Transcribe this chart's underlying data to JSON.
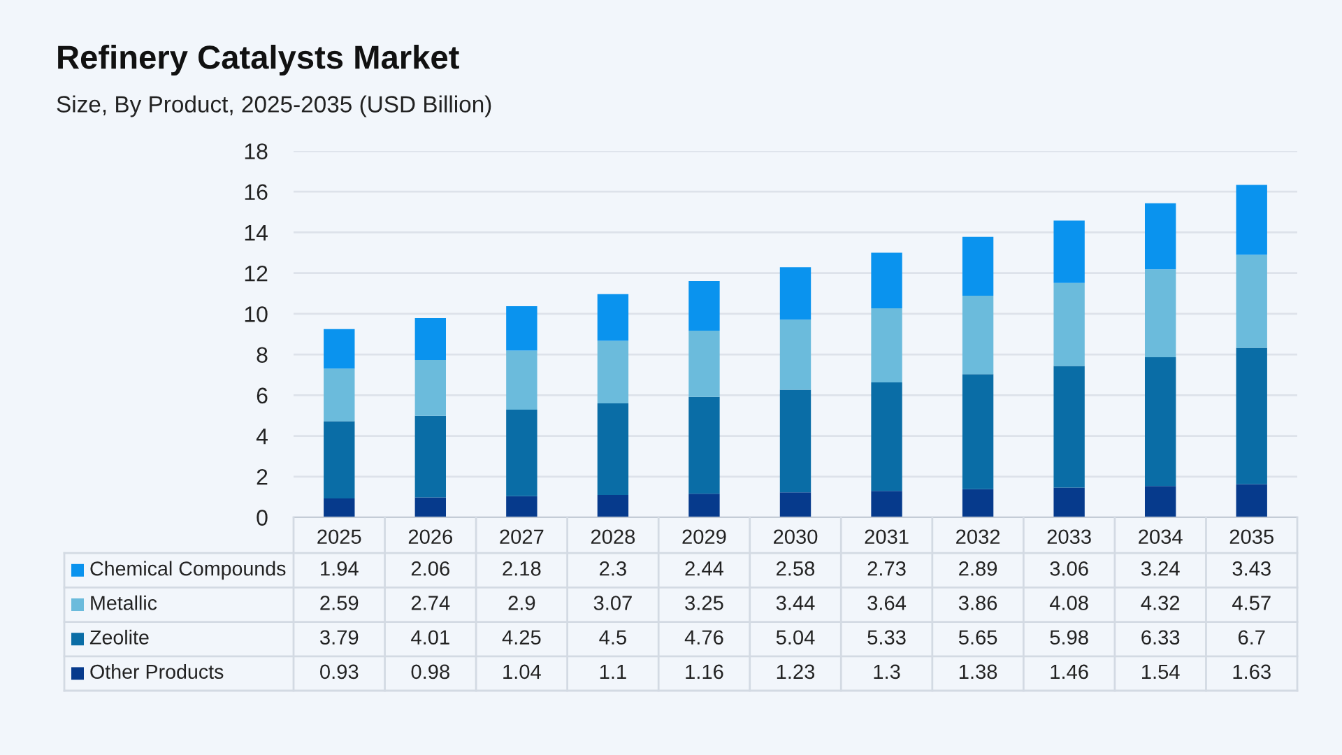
{
  "chart_data": {
    "type": "bar",
    "title": "Refinery Catalysts Market",
    "subtitle": "Size, By Product, 2025-2035 (USD Billion)",
    "categories": [
      "2025",
      "2026",
      "2027",
      "2028",
      "2029",
      "2030",
      "2031",
      "2032",
      "2033",
      "2034",
      "2035"
    ],
    "series": [
      {
        "name": "Other Products",
        "color": "#063a8c",
        "values": [
          0.93,
          0.98,
          1.04,
          1.1,
          1.16,
          1.23,
          1.3,
          1.38,
          1.46,
          1.54,
          1.63
        ]
      },
      {
        "name": "Zeolite",
        "color": "#0a6da6",
        "values": [
          3.79,
          4.01,
          4.25,
          4.5,
          4.76,
          5.04,
          5.33,
          5.65,
          5.98,
          6.33,
          6.7
        ]
      },
      {
        "name": "Metallic",
        "color": "#6bbbdc",
        "values": [
          2.59,
          2.74,
          2.9,
          3.07,
          3.25,
          3.44,
          3.64,
          3.86,
          4.08,
          4.32,
          4.57
        ]
      },
      {
        "name": "Chemical Compounds",
        "color": "#0a93ee",
        "values": [
          1.94,
          2.06,
          2.18,
          2.3,
          2.44,
          2.58,
          2.73,
          2.89,
          3.06,
          3.24,
          3.43
        ]
      }
    ],
    "stacked": true,
    "ylim": [
      0,
      18
    ],
    "yticks": [
      0,
      2,
      4,
      6,
      8,
      10,
      12,
      14,
      16,
      18
    ],
    "grid": "y",
    "legend": "bottom",
    "data_labels": true
  }
}
